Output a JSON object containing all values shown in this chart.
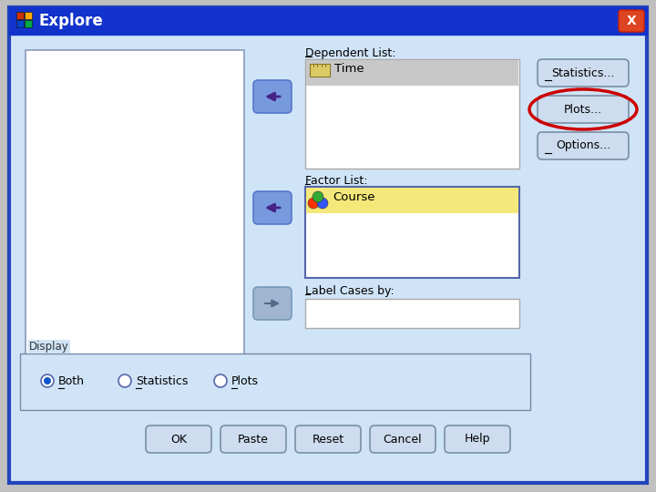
{
  "title": "Explore",
  "bg_color": "#d0e4f7",
  "titlebar_color": "#1133cc",
  "titlebar_text_color": "#ffffff",
  "left_panel_bg": "#ffffff",
  "dependent_list_label": "Dependent List:",
  "dependent_item": "Time",
  "factor_list_label": "Factor List:",
  "factor_item": "Course",
  "label_cases_label": "Label Cases by:",
  "display_label": "Display",
  "radio_options": [
    "Both",
    "Statistics",
    "Plots"
  ],
  "radio_selected": 0,
  "buttons_right": [
    "Statistics...",
    "Plots...",
    "Options..."
  ],
  "buttons_bottom": [
    "OK",
    "Paste",
    "Reset",
    "Cancel",
    "Help"
  ],
  "arrow_button_color_blue": "#7799dd",
  "arrow_button_color_grey": "#aabbcc",
  "button_face": "#cddcee",
  "button_border": "#7a8fa6",
  "outer_bg": "#c0c0c0",
  "dialog_border": "#2244bb",
  "dep_box_border": "#aaaaaa",
  "fac_box_border": "#5566aa",
  "icon_colors": [
    "#cc3300",
    "#ffaa00",
    "#0044cc",
    "#00aa44"
  ],
  "ball_colors": [
    "#ff3300",
    "#3355ff",
    "#33aa33"
  ],
  "ruler_color": "#ddcc66",
  "ruler_border": "#887722",
  "plots_circle_color": "#cc0000",
  "selected_grey": "#c8c8c8",
  "selected_yellow": "#f5e87a",
  "display_box_border": "#7788aa",
  "radio_fill": "#1155cc"
}
